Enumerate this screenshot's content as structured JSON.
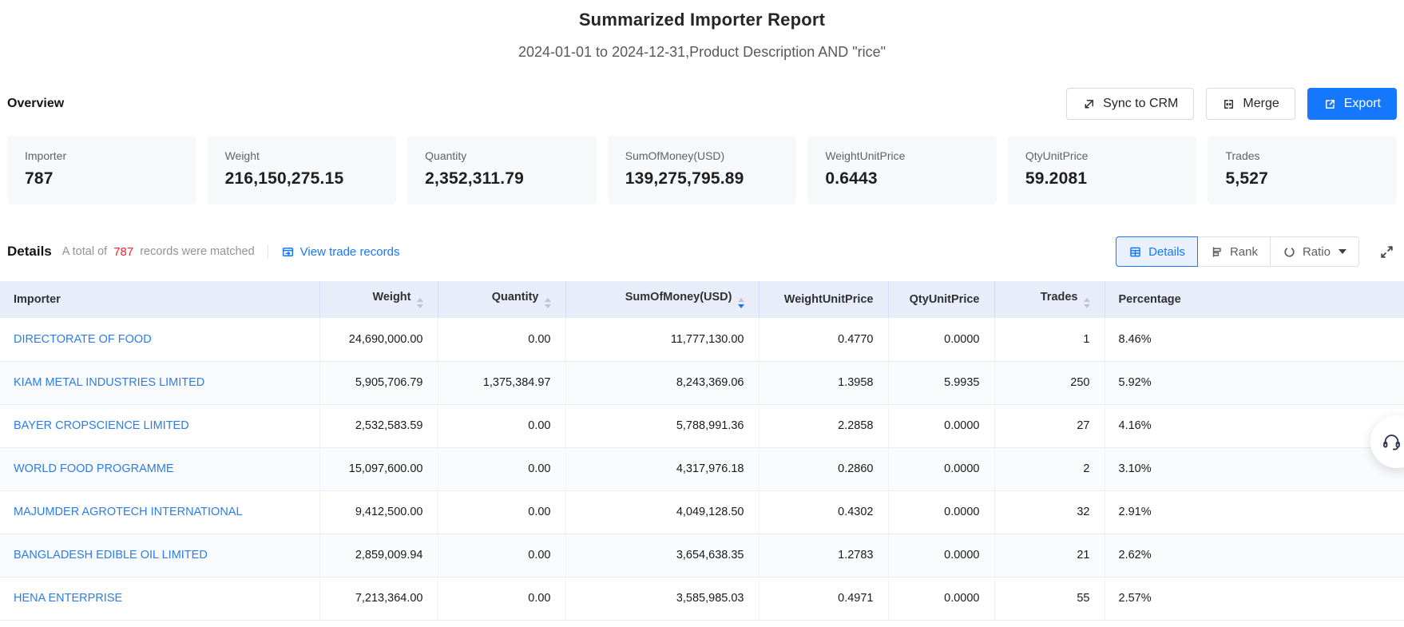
{
  "page": {
    "title": "Summarized Importer Report",
    "subtitle": "2024-01-01 to 2024-12-31,Product Description AND \"rice\""
  },
  "colors": {
    "accent": "#1677ff",
    "link_blue": "#2b7de9",
    "count_red": "#f5222d",
    "table_header_bg": "#e9edfa",
    "card_bg": "#f7f8fa"
  },
  "overview": {
    "section_label": "Overview",
    "buttons": {
      "sync_label": "Sync to CRM",
      "merge_label": "Merge",
      "export_label": "Export"
    },
    "cards": [
      {
        "label": "Importer",
        "value": "787"
      },
      {
        "label": "Weight",
        "value": "216,150,275.15"
      },
      {
        "label": "Quantity",
        "value": "2,352,311.79"
      },
      {
        "label": "SumOfMoney(USD)",
        "value": "139,275,795.89"
      },
      {
        "label": "WeightUnitPrice",
        "value": "0.6443"
      },
      {
        "label": "QtyUnitPrice",
        "value": "59.2081"
      },
      {
        "label": "Trades",
        "value": "5,527"
      }
    ]
  },
  "details": {
    "section_label": "Details",
    "matched_prefix": "A total of",
    "matched_count": "787",
    "matched_suffix": "records were matched",
    "view_trade_records_label": "View trade records",
    "view_tabs": {
      "details_label": "Details",
      "rank_label": "Rank",
      "ratio_label": "Ratio"
    }
  },
  "table": {
    "columns": [
      {
        "label": "Importer",
        "align": "left",
        "sortable": false,
        "sort": null
      },
      {
        "label": "Weight",
        "align": "right",
        "sortable": true,
        "sort": null
      },
      {
        "label": "Quantity",
        "align": "right",
        "sortable": true,
        "sort": null
      },
      {
        "label": "SumOfMoney(USD)",
        "align": "right",
        "sortable": true,
        "sort": "desc"
      },
      {
        "label": "WeightUnitPrice",
        "align": "right",
        "sortable": false,
        "sort": null
      },
      {
        "label": "QtyUnitPrice",
        "align": "right",
        "sortable": false,
        "sort": null
      },
      {
        "label": "Trades",
        "align": "right",
        "sortable": true,
        "sort": null
      },
      {
        "label": "Percentage",
        "align": "left",
        "sortable": false,
        "sort": null
      }
    ],
    "rows": [
      {
        "importer": "DIRECTORATE OF FOOD",
        "weight": "24,690,000.00",
        "quantity": "0.00",
        "sum_of_money_usd": "11,777,130.00",
        "weight_unit_price": "0.4770",
        "qty_unit_price": "0.0000",
        "trades": "1",
        "percentage": "8.46%"
      },
      {
        "importer": "KIAM METAL INDUSTRIES LIMITED",
        "weight": "5,905,706.79",
        "quantity": "1,375,384.97",
        "sum_of_money_usd": "8,243,369.06",
        "weight_unit_price": "1.3958",
        "qty_unit_price": "5.9935",
        "trades": "250",
        "percentage": "5.92%"
      },
      {
        "importer": "BAYER CROPSCIENCE LIMITED",
        "weight": "2,532,583.59",
        "quantity": "0.00",
        "sum_of_money_usd": "5,788,991.36",
        "weight_unit_price": "2.2858",
        "qty_unit_price": "0.0000",
        "trades": "27",
        "percentage": "4.16%"
      },
      {
        "importer": "WORLD FOOD PROGRAMME",
        "weight": "15,097,600.00",
        "quantity": "0.00",
        "sum_of_money_usd": "4,317,976.18",
        "weight_unit_price": "0.2860",
        "qty_unit_price": "0.0000",
        "trades": "2",
        "percentage": "3.10%"
      },
      {
        "importer": "MAJUMDER AGROTECH INTERNATIONAL",
        "weight": "9,412,500.00",
        "quantity": "0.00",
        "sum_of_money_usd": "4,049,128.50",
        "weight_unit_price": "0.4302",
        "qty_unit_price": "0.0000",
        "trades": "32",
        "percentage": "2.91%"
      },
      {
        "importer": "BANGLADESH EDIBLE OIL LIMITED",
        "weight": "2,859,009.94",
        "quantity": "0.00",
        "sum_of_money_usd": "3,654,638.35",
        "weight_unit_price": "1.2783",
        "qty_unit_price": "0.0000",
        "trades": "21",
        "percentage": "2.62%"
      },
      {
        "importer": "HENA ENTERPRISE",
        "weight": "7,213,364.00",
        "quantity": "0.00",
        "sum_of_money_usd": "3,585,985.03",
        "weight_unit_price": "0.4971",
        "qty_unit_price": "0.0000",
        "trades": "55",
        "percentage": "2.57%"
      }
    ]
  },
  "floating": {
    "support_icon": "headset-icon"
  }
}
